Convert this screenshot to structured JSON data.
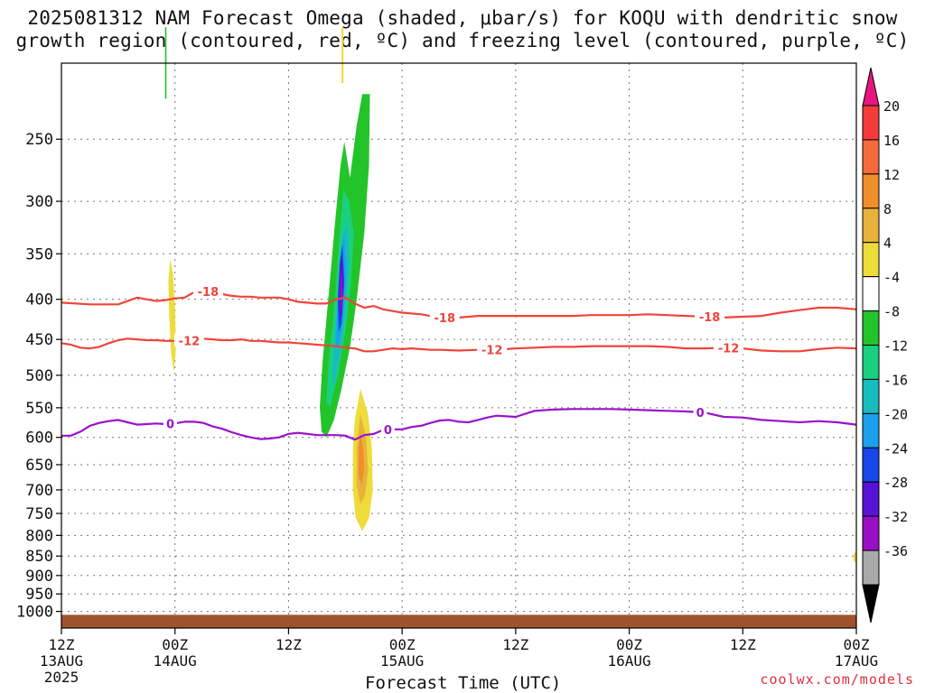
{
  "title": {
    "line1": "2025081312 NAM Forecast Omega (shaded, μbar/s) for KOQU with dendritic snow",
    "line2": "growth region (contoured, red, ºC) and freezing level (contoured, purple, ºC)"
  },
  "credit": "coolwx.com/models",
  "chart_data": {
    "type": "heatmap",
    "xlabel": "Forecast Time (UTC)",
    "ylabel": "",
    "x_unit": "hours from 2025-08-13 12Z",
    "xlim": [
      0,
      84
    ],
    "ylim": [
      1050,
      200
    ],
    "y_scale": "log-pressure (hPa)",
    "grid": true,
    "x_ticks": [
      {
        "x": 0,
        "lines": [
          "12Z",
          "13AUG",
          "2025"
        ]
      },
      {
        "x": 12,
        "lines": [
          "00Z",
          "14AUG"
        ]
      },
      {
        "x": 24,
        "lines": [
          "12Z"
        ]
      },
      {
        "x": 36,
        "lines": [
          "00Z",
          "15AUG"
        ]
      },
      {
        "x": 48,
        "lines": [
          "12Z"
        ]
      },
      {
        "x": 60,
        "lines": [
          "00Z",
          "16AUG"
        ]
      },
      {
        "x": 72,
        "lines": [
          "12Z"
        ]
      },
      {
        "x": 84,
        "lines": [
          "00Z",
          "17AUG"
        ]
      }
    ],
    "y_ticks": [
      250,
      300,
      350,
      400,
      450,
      500,
      550,
      600,
      650,
      700,
      750,
      800,
      850,
      900,
      950,
      1000
    ],
    "colorbar": {
      "labels": [
        20,
        16,
        12,
        8,
        4,
        -4,
        -8,
        -12,
        -16,
        -20,
        -24,
        -28,
        -32,
        -36
      ],
      "colors": [
        "#e8157e",
        "#f43b3a",
        "#f56a3b",
        "#f08e2c",
        "#e8b33c",
        "#eddc3a",
        "#ffffff",
        "#22c42a",
        "#1ad07e",
        "#17bcc0",
        "#1aa0ee",
        "#1747e8",
        "#5712d6",
        "#9a0fc6",
        "#a9a9a9",
        "#000000"
      ]
    },
    "series": [
      {
        "name": "-18",
        "color": "#f0443a",
        "x": [
          0,
          3,
          6,
          7,
          8,
          9,
          10,
          11,
          12,
          13,
          14,
          15,
          16,
          17,
          18,
          19,
          20,
          21,
          22,
          23,
          24,
          25,
          26,
          27,
          28,
          29,
          30,
          31,
          32,
          33,
          34,
          35,
          36,
          38,
          40,
          42,
          44,
          46,
          48,
          50,
          52,
          54,
          56,
          58,
          60,
          62,
          64,
          66,
          68,
          70,
          72,
          74,
          76,
          78,
          80,
          82,
          84
        ],
        "y": [
          404,
          406,
          406,
          402,
          398,
          400,
          402,
          401,
          399,
          398,
          392,
          390,
          392,
          394,
          396,
          397,
          397,
          398,
          398,
          398,
          400,
          403,
          404,
          405,
          405,
          400,
          398,
          405,
          410,
          408,
          412,
          414,
          416,
          418,
          422,
          422,
          420,
          420,
          420,
          420,
          420,
          420,
          419,
          419,
          419,
          418,
          419,
          420,
          421,
          422,
          421,
          420,
          416,
          413,
          410,
          410,
          412
        ]
      },
      {
        "name": "-12",
        "color": "#f0443a",
        "x": [
          0,
          1,
          2,
          3,
          4,
          5,
          6,
          7,
          8,
          9,
          10,
          11,
          12,
          13,
          14,
          15,
          16,
          17,
          18,
          19,
          20,
          21,
          22,
          23,
          24,
          25,
          26,
          27,
          28,
          29,
          30,
          31,
          32,
          33,
          34,
          35,
          36,
          37,
          38,
          39,
          40,
          42,
          44,
          46,
          48,
          50,
          52,
          54,
          56,
          58,
          60,
          62,
          64,
          66,
          68,
          70,
          72,
          74,
          76,
          78,
          80,
          82,
          84
        ],
        "y": [
          455,
          457,
          461,
          462,
          460,
          455,
          451,
          449,
          450,
          451,
          451,
          452,
          452,
          452,
          451,
          449,
          450,
          451,
          451,
          450,
          452,
          452,
          453,
          454,
          454,
          455,
          456,
          457,
          458,
          459,
          461,
          462,
          466,
          466,
          464,
          462,
          463,
          462,
          463,
          464,
          464,
          465,
          464,
          464,
          462,
          461,
          460,
          460,
          459,
          459,
          459,
          459,
          460,
          462,
          462,
          461,
          462,
          465,
          466,
          466,
          463,
          461,
          462
        ]
      },
      {
        "name": "0",
        "color": "#9a12cc",
        "x": [
          0,
          1,
          2,
          3,
          4,
          5,
          6,
          7,
          8,
          9,
          10,
          11,
          12,
          13,
          14,
          15,
          16,
          17,
          18,
          19,
          20,
          21,
          22,
          23,
          24,
          25,
          26,
          27,
          28,
          29,
          30,
          31,
          32,
          33,
          34,
          35,
          36,
          37,
          38,
          39,
          40,
          41,
          42,
          43,
          44,
          45,
          46,
          48,
          50,
          52,
          54,
          56,
          58,
          60,
          62,
          64,
          66,
          68,
          70,
          72,
          74,
          76,
          78,
          80,
          82,
          84
        ],
        "y": [
          597,
          597,
          590,
          580,
          575,
          572,
          570,
          574,
          578,
          577,
          576,
          577,
          576,
          573,
          573,
          575,
          581,
          585,
          591,
          596,
          600,
          603,
          602,
          600,
          594,
          592,
          594,
          596,
          596,
          596,
          597,
          604,
          596,
          594,
          587,
          586,
          586,
          582,
          580,
          575,
          571,
          570,
          573,
          574,
          570,
          566,
          563,
          565,
          555,
          553,
          552,
          552,
          552,
          553,
          554,
          555,
          556,
          558,
          565,
          566,
          570,
          572,
          574,
          572,
          574,
          578
        ]
      }
    ],
    "contour_labels": [
      {
        "text": "-18",
        "series": "-18",
        "x": 15.5
      },
      {
        "text": "-18",
        "series": "-18",
        "x": 40.5
      },
      {
        "text": "-18",
        "series": "-18",
        "x": 68.5
      },
      {
        "text": "-12",
        "series": "-12",
        "x": 13.5
      },
      {
        "text": "-12",
        "series": "-12",
        "x": 45.5
      },
      {
        "text": "-12",
        "series": "-12",
        "x": 70.5
      },
      {
        "text": "0",
        "series": "0",
        "x": 11.5
      },
      {
        "text": "0",
        "series": "0",
        "x": 34.5
      },
      {
        "text": "0",
        "series": "0",
        "x": 67.5
      }
    ],
    "omega_features": [
      {
        "kind": "upward motion column",
        "range_ubar_s": [
          -4,
          -28
        ],
        "x_center": 29.5,
        "p_top": 220,
        "p_bottom": 600,
        "peak_ubar_s": -28
      },
      {
        "kind": "downward motion column",
        "range_ubar_s": [
          4,
          12
        ],
        "x_center": 31.5,
        "p_top": 520,
        "p_bottom": 790,
        "peak_ubar_s": 12
      },
      {
        "kind": "weak downward motion",
        "range_ubar_s": [
          4,
          8
        ],
        "x_center": 11.7,
        "p_top": 355,
        "p_bottom": 495
      },
      {
        "kind": "weak upward motion",
        "range_ubar_s": [
          -4,
          -8
        ],
        "x_center": 11.0,
        "p_top": 180,
        "p_bottom": 220
      },
      {
        "kind": "weak downward motion",
        "range_ubar_s": [
          4,
          8
        ],
        "x_center": 29.7,
        "p_top": 180,
        "p_bottom": 210
      },
      {
        "kind": "weak downward motion",
        "range_ubar_s": [
          4,
          8
        ],
        "x_center": 84.0,
        "p_top": 840,
        "p_bottom": 870
      }
    ],
    "ground": {
      "color": "#a0522d",
      "p_top": 1010
    }
  }
}
